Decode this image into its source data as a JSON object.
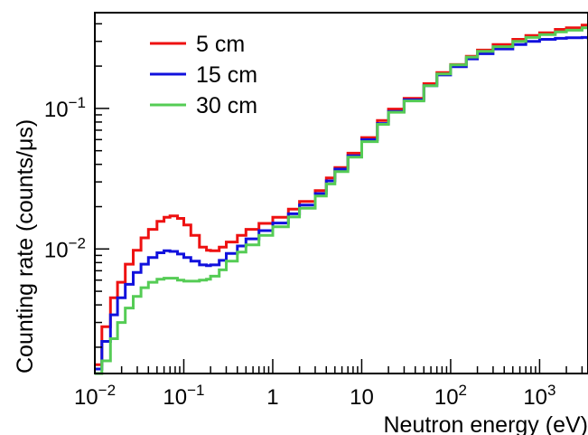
{
  "chart_data": {
    "type": "line",
    "title": "",
    "xlabel": "Neutron energy (eV)",
    "ylabel": "Counting rate (counts/μs)",
    "x_scale": "log",
    "y_scale": "log",
    "xlim": [
      0.01,
      3500
    ],
    "ylim": [
      0.0013,
      0.48
    ],
    "grid": false,
    "legend_position": "top-left",
    "x_ticks": [
      {
        "value": 0.01,
        "base": "10",
        "exp": "−2"
      },
      {
        "value": 0.1,
        "base": "10",
        "exp": "−1"
      },
      {
        "value": 1,
        "base": "1",
        "exp": ""
      },
      {
        "value": 10,
        "base": "10",
        "exp": ""
      },
      {
        "value": 100,
        "base": "10",
        "exp": "2"
      },
      {
        "value": 1000,
        "base": "10",
        "exp": "3"
      }
    ],
    "y_ticks": [
      {
        "value": 0.01,
        "base": "10",
        "exp": "−2"
      },
      {
        "value": 0.1,
        "base": "10",
        "exp": "−1"
      }
    ],
    "x": [
      0.01,
      0.012,
      0.015,
      0.018,
      0.022,
      0.027,
      0.033,
      0.04,
      0.05,
      0.06,
      0.07,
      0.085,
      0.1,
      0.12,
      0.15,
      0.18,
      0.2,
      0.25,
      0.3,
      0.4,
      0.5,
      0.7,
      1,
      1.5,
      2,
      3,
      4,
      5,
      7,
      10,
      15,
      20,
      30,
      50,
      70,
      100,
      150,
      200,
      300,
      500,
      700,
      1000,
      1500,
      2000,
      3000,
      3500
    ],
    "series": [
      {
        "name": "5 cm",
        "color": "#ee1111",
        "values": [
          0.0015,
          0.0028,
          0.0045,
          0.0058,
          0.0078,
          0.0098,
          0.012,
          0.0138,
          0.0157,
          0.0168,
          0.0172,
          0.0165,
          0.0148,
          0.0125,
          0.0103,
          0.0098,
          0.0097,
          0.0103,
          0.0112,
          0.0125,
          0.0138,
          0.0152,
          0.0168,
          0.0192,
          0.0218,
          0.026,
          0.032,
          0.038,
          0.048,
          0.062,
          0.082,
          0.099,
          0.118,
          0.15,
          0.18,
          0.205,
          0.235,
          0.26,
          0.285,
          0.31,
          0.33,
          0.345,
          0.365,
          0.375,
          0.392,
          0.395
        ]
      },
      {
        "name": "15 cm",
        "color": "#1111dd",
        "values": [
          0.0014,
          0.0022,
          0.0034,
          0.0045,
          0.0056,
          0.0068,
          0.0078,
          0.0087,
          0.0094,
          0.0097,
          0.0096,
          0.0092,
          0.0087,
          0.0082,
          0.0077,
          0.0076,
          0.0077,
          0.0083,
          0.0093,
          0.0105,
          0.0118,
          0.0135,
          0.0153,
          0.0178,
          0.0205,
          0.0248,
          0.0305,
          0.037,
          0.046,
          0.06,
          0.078,
          0.095,
          0.115,
          0.145,
          0.173,
          0.198,
          0.225,
          0.245,
          0.265,
          0.285,
          0.3,
          0.31,
          0.315,
          0.318,
          0.32,
          0.31
        ]
      },
      {
        "name": "30 cm",
        "color": "#55cc55",
        "values": [
          0.0013,
          0.0016,
          0.0023,
          0.003,
          0.0038,
          0.0046,
          0.0053,
          0.0058,
          0.0061,
          0.0062,
          0.0062,
          0.006,
          0.0059,
          0.0059,
          0.006,
          0.0061,
          0.0064,
          0.0071,
          0.0082,
          0.0095,
          0.0107,
          0.0125,
          0.0144,
          0.0169,
          0.0195,
          0.0238,
          0.029,
          0.0355,
          0.045,
          0.058,
          0.077,
          0.094,
          0.113,
          0.145,
          0.176,
          0.204,
          0.232,
          0.255,
          0.275,
          0.3,
          0.32,
          0.335,
          0.35,
          0.36,
          0.375,
          0.37
        ]
      }
    ]
  }
}
